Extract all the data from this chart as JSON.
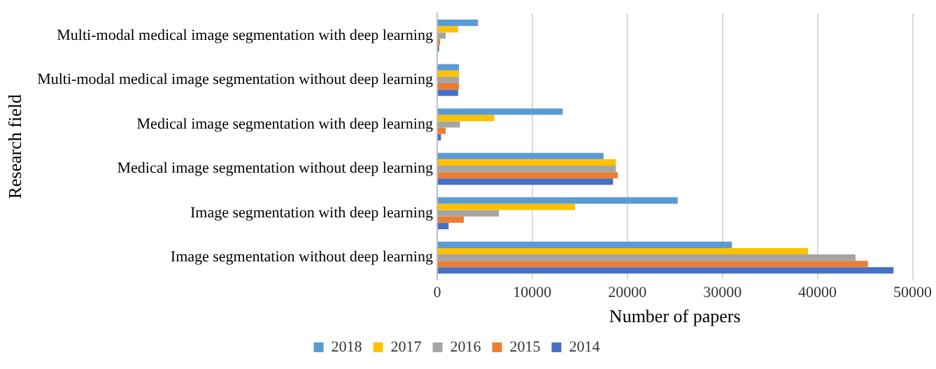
{
  "chart_data": {
    "type": "bar",
    "orientation": "horizontal",
    "xlabel": "Number of papers",
    "ylabel": "Research field",
    "categories": [
      "Multi-modal medical image segmentation with deep learning",
      "Multi-modal medical image segmentation without deep learning",
      "Medical image segmentation with deep learning",
      "Medical image segmentation without deep learning",
      "Image segmentation with deep learning",
      "Image segmentation without deep learning"
    ],
    "series": [
      {
        "name": "2018",
        "color": "#5b9bd5",
        "values": [
          4300,
          2300,
          13200,
          17500,
          25300,
          31000
        ]
      },
      {
        "name": "2017",
        "color": "#ffc000",
        "values": [
          2200,
          2300,
          6000,
          18800,
          14500,
          39000
        ]
      },
      {
        "name": "2016",
        "color": "#a5a5a5",
        "values": [
          900,
          2300,
          2400,
          18800,
          6500,
          44000
        ]
      },
      {
        "name": "2015",
        "color": "#ed7d31",
        "values": [
          300,
          2300,
          900,
          19000,
          2800,
          45300
        ]
      },
      {
        "name": "2014",
        "color": "#4472c4",
        "values": [
          200,
          2200,
          400,
          18500,
          1200,
          48000
        ]
      }
    ],
    "xlim": [
      0,
      50000
    ],
    "xticks": [
      0,
      10000,
      20000,
      30000,
      40000,
      50000
    ],
    "grid": "x",
    "legend": "bottom"
  }
}
